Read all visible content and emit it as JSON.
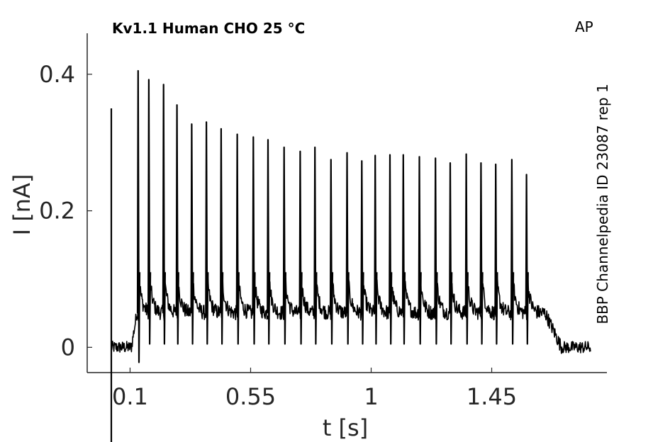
{
  "chart_data": {
    "type": "line",
    "title": "Kv1.1  Human  CHO  25 °C",
    "protocol": "AP",
    "source": "BBP Channelpedia ID 23087 rep 1",
    "xlabel": "t [s]",
    "ylabel": "I [nA]",
    "xlim": [
      -0.06,
      1.88
    ],
    "ylim": [
      -0.037,
      0.46
    ],
    "x_ticks": [
      0.1,
      0.55,
      1,
      1.45
    ],
    "x_tick_labels": [
      "0.1",
      "0.55",
      "1",
      "1.45"
    ],
    "y_ticks": [
      0,
      0.2,
      0.4
    ],
    "y_tick_labels": [
      "0",
      "0.2",
      "0.4"
    ],
    "grid": false,
    "baseline_current": 0.0,
    "plateau_current": 0.05,
    "stimulus_window": [
      0.125,
      1.65
    ],
    "stimulus_artifact": {
      "x": 0.03,
      "peak": 0.35
    },
    "spikes": [
      {
        "t": 0.13,
        "peak": 0.405
      },
      {
        "t": 0.17,
        "peak": 0.392
      },
      {
        "t": 0.225,
        "peak": 0.385
      },
      {
        "t": 0.275,
        "peak": 0.355
      },
      {
        "t": 0.33,
        "peak": 0.327
      },
      {
        "t": 0.385,
        "peak": 0.33
      },
      {
        "t": 0.44,
        "peak": 0.32
      },
      {
        "t": 0.5,
        "peak": 0.312
      },
      {
        "t": 0.56,
        "peak": 0.308
      },
      {
        "t": 0.615,
        "peak": 0.304
      },
      {
        "t": 0.675,
        "peak": 0.293
      },
      {
        "t": 0.735,
        "peak": 0.287
      },
      {
        "t": 0.79,
        "peak": 0.293
      },
      {
        "t": 0.85,
        "peak": 0.275
      },
      {
        "t": 0.91,
        "peak": 0.285
      },
      {
        "t": 0.965,
        "peak": 0.273
      },
      {
        "t": 1.015,
        "peak": 0.281
      },
      {
        "t": 1.07,
        "peak": 0.282
      },
      {
        "t": 1.12,
        "peak": 0.282
      },
      {
        "t": 1.18,
        "peak": 0.279
      },
      {
        "t": 1.24,
        "peak": 0.277
      },
      {
        "t": 1.295,
        "peak": 0.27
      },
      {
        "t": 1.355,
        "peak": 0.283
      },
      {
        "t": 1.41,
        "peak": 0.27
      },
      {
        "t": 1.465,
        "peak": 0.268
      },
      {
        "t": 1.525,
        "peak": 0.275
      },
      {
        "t": 1.58,
        "peak": 0.253
      }
    ]
  }
}
